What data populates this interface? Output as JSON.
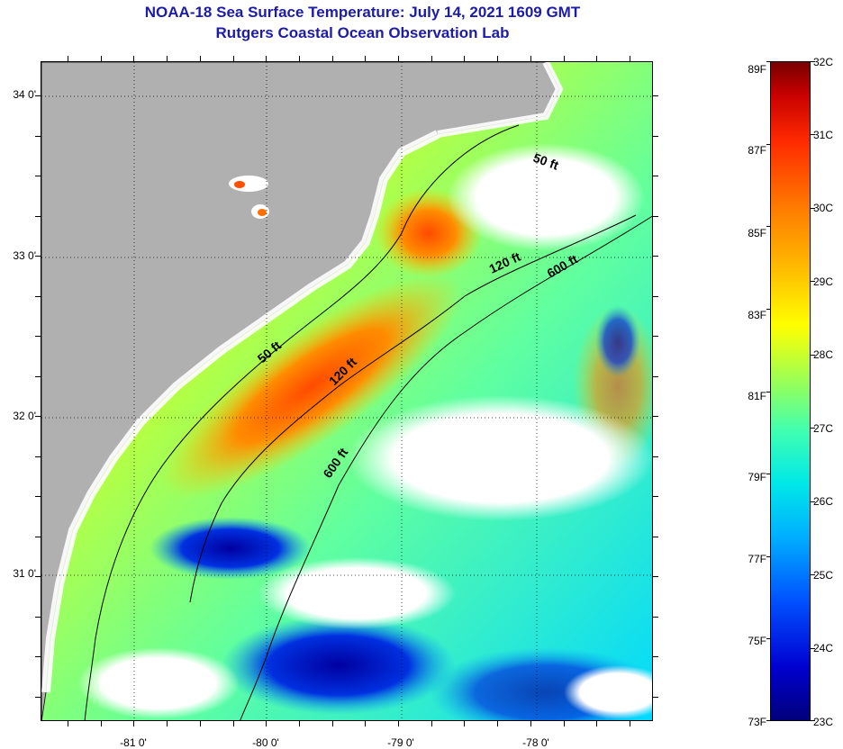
{
  "header": {
    "title": "NOAA-18 Sea Surface Temperature:  July 14, 2021 1609 GMT",
    "subtitle": "Rutgers Coastal Ocean Observation Lab"
  },
  "map": {
    "latitude_labels": [
      "34 0'",
      "33 0'",
      "32 0'",
      "31 0'"
    ],
    "longitude_labels": [
      "-81 0'",
      "-80 0'",
      "-79 0'",
      "-78 0'"
    ],
    "contour_labels": [
      "50 ft",
      "120 ft",
      "600 ft",
      "50 ft",
      "120 ft",
      "600 ft"
    ],
    "colors": {
      "land": "#b0b0b0",
      "cloud": "#ffffff",
      "warm": "#ff5a00",
      "cold": "#0000b0"
    }
  },
  "colorbar": {
    "fahrenheit_labels": [
      "89F",
      "87F",
      "85F",
      "83F",
      "81F",
      "79F",
      "77F",
      "75F",
      "73F"
    ],
    "celsius_labels": [
      "32C",
      "31C",
      "30C",
      "29C",
      "28C",
      "27C",
      "26C",
      "25C",
      "24C",
      "23C"
    ],
    "range_c": [
      23,
      32
    ],
    "range_f": [
      73,
      89
    ]
  }
}
